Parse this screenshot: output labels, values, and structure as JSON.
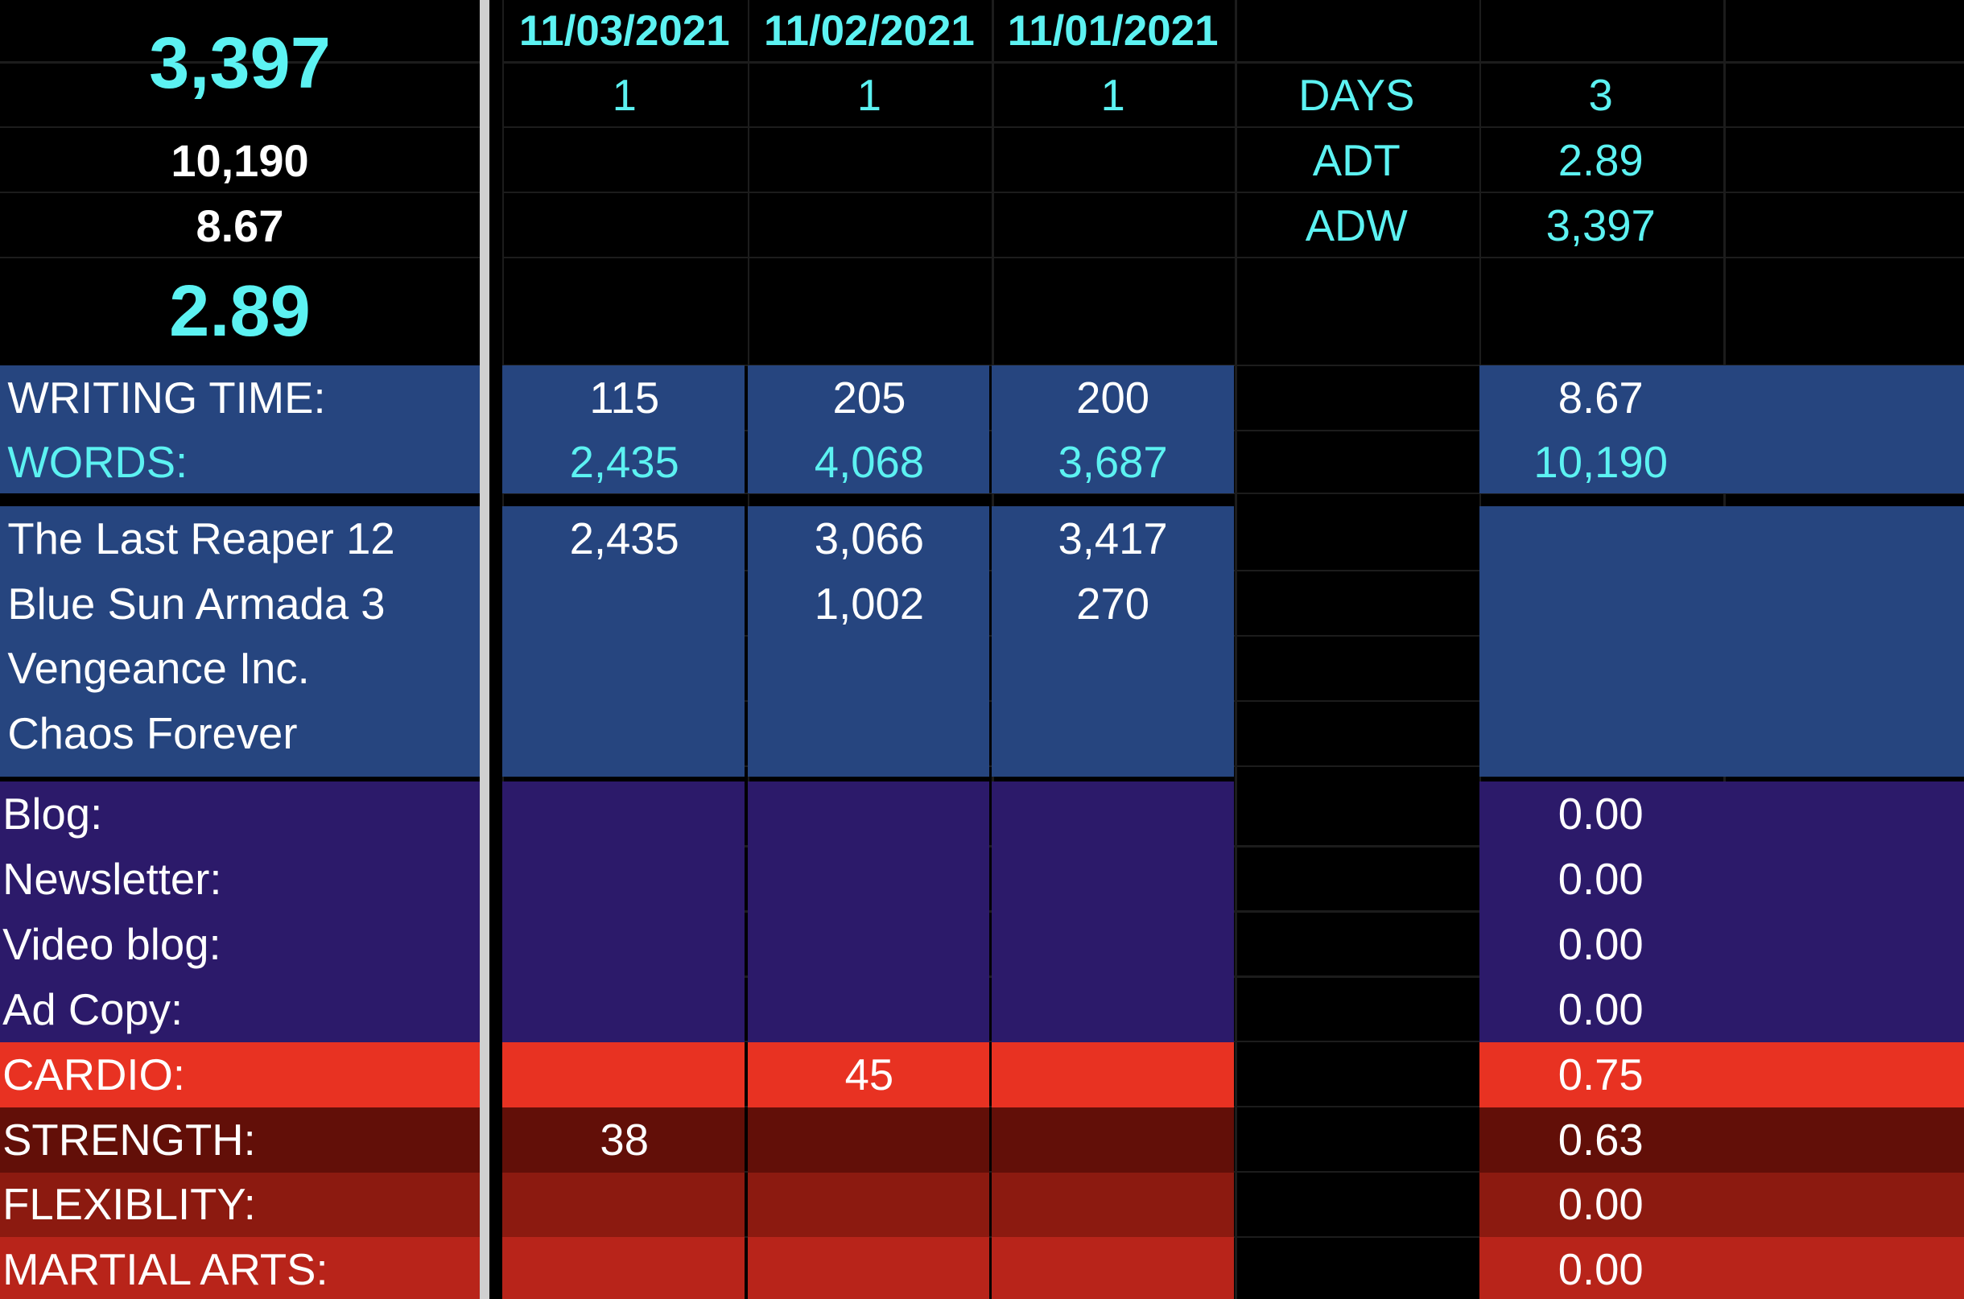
{
  "summary": {
    "avg_words": "3,397",
    "total_words": "10,190",
    "total_hours": "8.67",
    "avg_time": "2.89"
  },
  "dates": [
    "11/03/2021",
    "11/02/2021",
    "11/01/2021"
  ],
  "day_counts": [
    "1",
    "1",
    "1"
  ],
  "stats": [
    {
      "label": "DAYS",
      "value": "3"
    },
    {
      "label": "ADT",
      "value": "2.89"
    },
    {
      "label": "ADW",
      "value": "3,397"
    }
  ],
  "writing_time": {
    "label": "WRITING TIME:",
    "values": [
      "115",
      "205",
      "200"
    ],
    "total": "8.67"
  },
  "words": {
    "label": "WORDS:",
    "values": [
      "2,435",
      "4,068",
      "3,687"
    ],
    "total": "10,190"
  },
  "projects": [
    {
      "name": "The Last Reaper 12",
      "values": [
        "2,435",
        "3,066",
        "3,417"
      ]
    },
    {
      "name": "Blue Sun Armada 3",
      "values": [
        null,
        "1,002",
        "270"
      ]
    },
    {
      "name": "Vengeance Inc.",
      "values": [
        null,
        null,
        null
      ]
    },
    {
      "name": "Chaos Forever",
      "values": [
        null,
        null,
        null
      ]
    }
  ],
  "other_writing": [
    {
      "label": "Blog:",
      "total": "0.00"
    },
    {
      "label": "Newsletter:",
      "total": "0.00"
    },
    {
      "label": "Video blog:",
      "total": "0.00"
    },
    {
      "label": "Ad Copy:",
      "total": "0.00"
    }
  ],
  "exercise": [
    {
      "label": "CARDIO:",
      "values": [
        null,
        "45",
        null
      ],
      "total": "0.75"
    },
    {
      "label": "STRENGTH:",
      "values": [
        "38",
        null,
        null
      ],
      "total": "0.63"
    },
    {
      "label": "FLEXIBLITY:",
      "values": [
        null,
        null,
        null
      ],
      "total": "0.00"
    },
    {
      "label": "MARTIAL ARTS:",
      "values": [
        null,
        null,
        null
      ],
      "total": "0.00"
    }
  ]
}
